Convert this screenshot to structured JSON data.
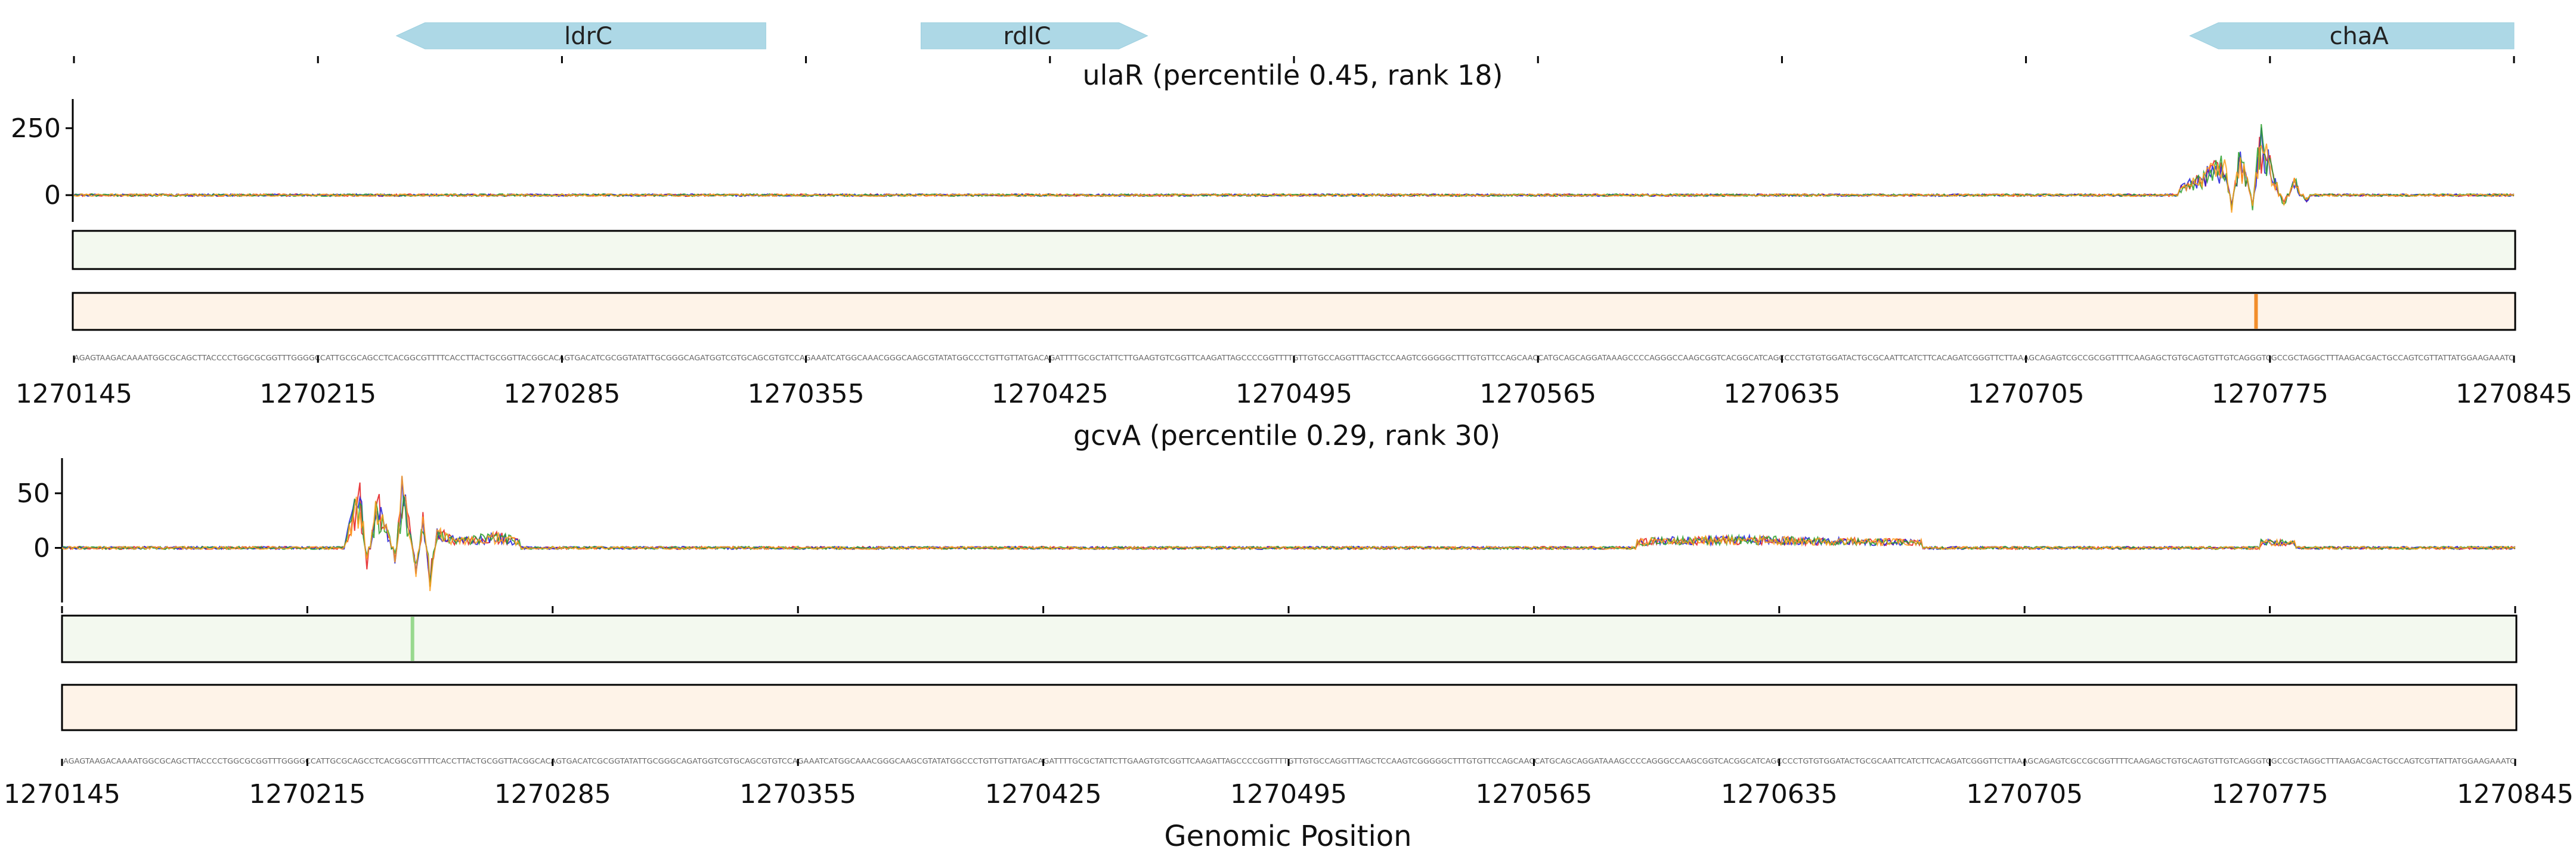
{
  "genes": [
    {
      "name": "ldrC",
      "start": 1270237.5,
      "end": 1270343.5,
      "strand": "-"
    },
    {
      "name": "rdlC",
      "start": 1270388,
      "end": 1270453,
      "strand": "+"
    },
    {
      "name": "chaA",
      "start": 1270752,
      "end": 1270845,
      "strand": "-"
    }
  ],
  "chart_data": [
    {
      "type": "line",
      "title": "ulaR (percentile 0.45, rank 18)",
      "xlabel": "",
      "ylabel": "",
      "xlim": [
        1270145,
        1270845
      ],
      "ylim": [
        -100,
        350
      ],
      "yticks": [
        0,
        250
      ],
      "xticks": [
        1270145,
        1270215,
        1270285,
        1270355,
        1270425,
        1270495,
        1270565,
        1270635,
        1270705,
        1270775,
        1270845
      ],
      "series": [
        {
          "values": [
            [
              1270155,
              -3
            ],
            [
              1270180,
              4
            ],
            [
              1270210,
              -5
            ],
            [
              1270260,
              18
            ],
            [
              1270300,
              -10
            ],
            [
              1270320,
              14
            ],
            [
              1270380,
              10
            ],
            [
              1270420,
              -6
            ],
            [
              1270480,
              6
            ],
            [
              1270530,
              -4
            ],
            [
              1270600,
              5
            ],
            [
              1270650,
              -3
            ],
            [
              1270700,
              4
            ],
            [
              1270745,
              -8
            ],
            [
              1270762,
              160
            ],
            [
              1270764,
              -80
            ],
            [
              1270766,
              200
            ],
            [
              1270768,
              120
            ],
            [
              1270770,
              -60
            ],
            [
              1270772,
              290
            ],
            [
              1270774,
              200
            ],
            [
              1270776,
              110
            ],
            [
              1270779,
              -60
            ],
            [
              1270782,
              80
            ],
            [
              1270785,
              -40
            ],
            [
              1270790,
              20
            ],
            [
              1270800,
              -6
            ],
            [
              1270840,
              3
            ]
          ]
        }
      ],
      "heatmap_tracks": [
        "green",
        "orange"
      ],
      "highlight_positions": {
        "orange": [
          1270771
        ]
      },
      "grid": false
    },
    {
      "type": "line",
      "title": "gcvA (percentile 0.29, rank 30)",
      "xlabel": "Genomic Position",
      "ylabel": "",
      "xlim": [
        1270145,
        1270845
      ],
      "ylim": [
        -50,
        80
      ],
      "yticks": [
        0,
        50
      ],
      "xticks": [
        1270145,
        1270215,
        1270285,
        1270355,
        1270425,
        1270495,
        1270565,
        1270635,
        1270705,
        1270775,
        1270845
      ],
      "series": [
        {
          "values": [
            [
              1270150,
              -2
            ],
            [
              1270200,
              -4
            ],
            [
              1270225,
              -6
            ],
            [
              1270230,
              70
            ],
            [
              1270232,
              -20
            ],
            [
              1270235,
              60
            ],
            [
              1270238,
              20
            ],
            [
              1270240,
              -15
            ],
            [
              1270242,
              70
            ],
            [
              1270244,
              30
            ],
            [
              1270246,
              -30
            ],
            [
              1270248,
              35
            ],
            [
              1270250,
              -40
            ],
            [
              1270252,
              20
            ],
            [
              1270258,
              10
            ],
            [
              1270270,
              15
            ],
            [
              1270285,
              -4
            ],
            [
              1270355,
              6
            ],
            [
              1270425,
              -5
            ],
            [
              1270495,
              4
            ],
            [
              1270565,
              -3
            ],
            [
              1270600,
              10
            ],
            [
              1270620,
              12
            ],
            [
              1270700,
              6
            ],
            [
              1270780,
              8
            ],
            [
              1270845,
              2
            ]
          ]
        }
      ],
      "heatmap_tracks": [
        "green",
        "orange"
      ],
      "highlight_positions": {
        "green": [
          1270245
        ]
      },
      "grid": false
    }
  ]
}
